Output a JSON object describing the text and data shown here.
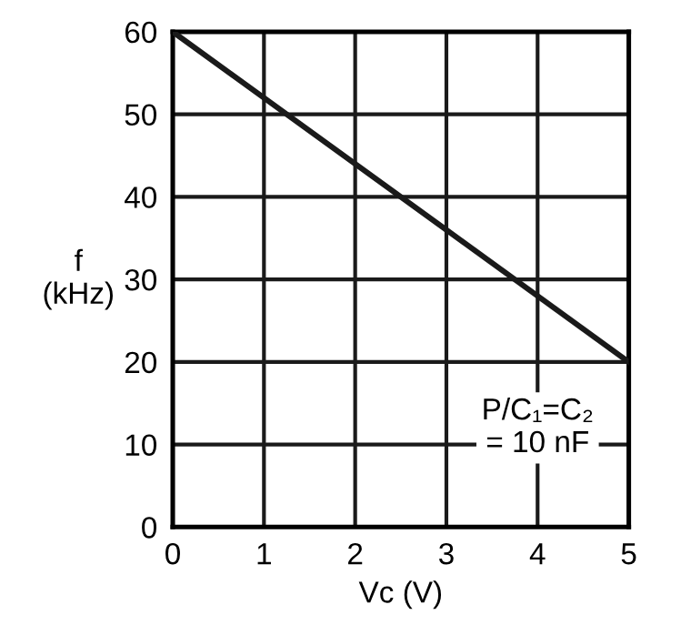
{
  "chart_data": {
    "type": "line",
    "xlabel": "Vc (V)",
    "ylabel": "f\n(kHz)",
    "x": [
      0,
      5
    ],
    "series": [
      {
        "color": "#1a1a1a",
        "values": [
          60,
          20
        ]
      }
    ],
    "xlim": [
      0,
      5
    ],
    "ylim": [
      0,
      60
    ],
    "xticks": [
      0,
      1,
      2,
      3,
      4,
      5
    ],
    "yticks": [
      0,
      10,
      20,
      30,
      40,
      50,
      60
    ],
    "grid": true,
    "marker": "none",
    "line_style": "solid",
    "annotations": [
      "P/C₁=C₂\n= 10 nF"
    ]
  }
}
